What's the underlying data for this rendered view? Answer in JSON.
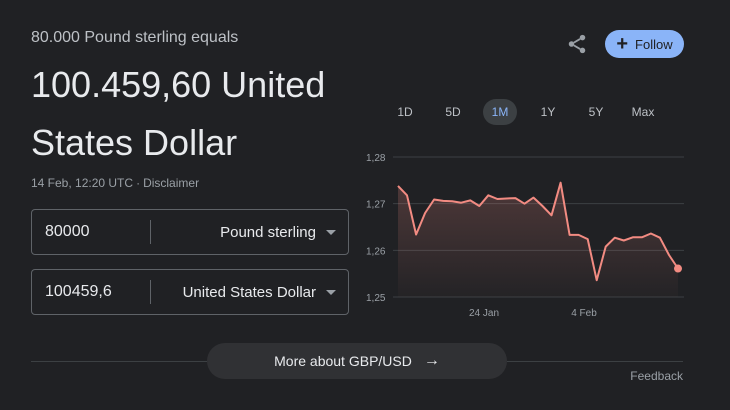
{
  "header": {
    "subhead": "80.000 Pound sterling equals",
    "result": "100.459,60 United States Dollar",
    "timestamp": "14 Feb, 12:20 UTC",
    "separator": "·",
    "disclaimer": "Disclaimer"
  },
  "converter": {
    "from": {
      "value": "80000",
      "currency": "Pound sterling"
    },
    "to": {
      "value": "100459,6",
      "currency": "United States Dollar"
    }
  },
  "actions": {
    "share_icon": "share-icon",
    "follow_label": "Follow",
    "follow_icon": "+"
  },
  "ranges": [
    {
      "label": "1D",
      "active": false
    },
    {
      "label": "5D",
      "active": false
    },
    {
      "label": "1M",
      "active": true
    },
    {
      "label": "1Y",
      "active": false
    },
    {
      "label": "5Y",
      "active": false
    },
    {
      "label": "Max",
      "active": false
    }
  ],
  "colors": {
    "line": "#f28b82",
    "accent": "#8ab4f8"
  },
  "chart_data": {
    "type": "line",
    "y_ticks": [
      "1,28",
      "1,27",
      "1,26",
      "1,25"
    ],
    "ylim": [
      1.25,
      1.28
    ],
    "x_ticks": [
      "24 Jan",
      "4 Feb"
    ],
    "series": [
      {
        "values": [
          1.2738,
          1.2718,
          1.2634,
          1.268,
          1.2709,
          1.2706,
          1.2705,
          1.2702,
          1.2707,
          1.2695,
          1.2718,
          1.271,
          1.2711,
          1.2712,
          1.27,
          1.2713,
          1.2695,
          1.2675,
          1.2745,
          1.2633,
          1.2633,
          1.2624,
          1.2536,
          1.2608,
          1.2627,
          1.2621,
          1.2628,
          1.2628,
          1.2636,
          1.2627,
          1.259,
          1.2561
        ]
      }
    ]
  },
  "footer": {
    "more_label": "More about GBP/USD",
    "more_arrow": "→",
    "feedback": "Feedback"
  }
}
